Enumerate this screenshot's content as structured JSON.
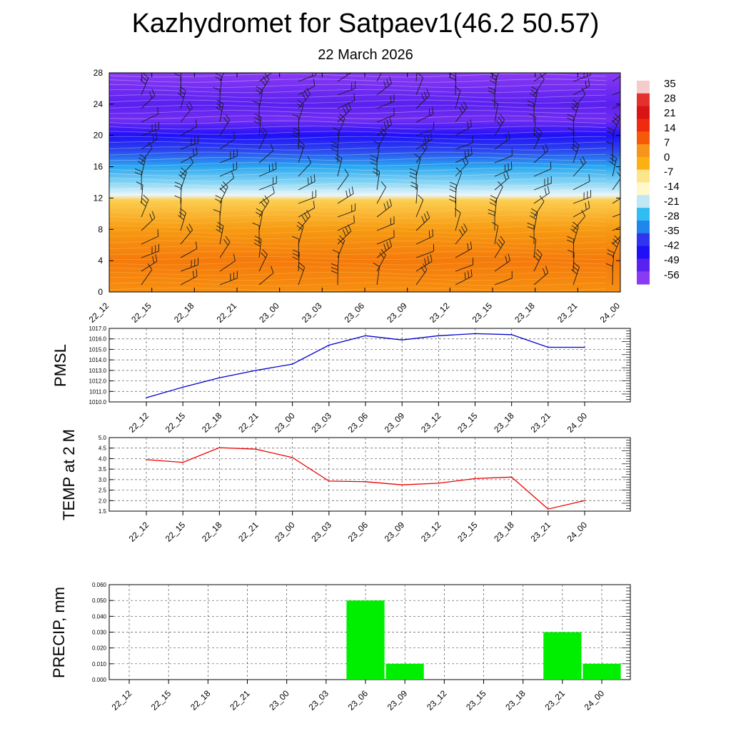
{
  "header": {
    "title": "Kazhydromet for Satpaev1(46.2 50.57)",
    "subtitle": "22 March 2026"
  },
  "chart_data": [
    {
      "type": "heatmap",
      "name": "temperature-cross-section",
      "title": "",
      "x_ticks": [
        "22_12",
        "22_15",
        "22_18",
        "22_21",
        "23_00",
        "23_03",
        "23_06",
        "23_09",
        "23_12",
        "23_15",
        "23_18",
        "23_21",
        "24_00"
      ],
      "y_ticks": [
        "0",
        "4",
        "8",
        "12",
        "16",
        "20",
        "24",
        "28"
      ],
      "ylim": [
        0,
        28
      ],
      "colorbar": {
        "labels": [
          "35",
          "28",
          "21",
          "14",
          "7",
          "0",
          "-7",
          "-14",
          "-21",
          "-28",
          "-35",
          "-42",
          "-49",
          "-56"
        ],
        "colors": [
          "#f4cccc",
          "#e53030",
          "#d81414",
          "#ef2a10",
          "#f45a08",
          "#f7941a",
          "#fbb014",
          "#fde58c",
          "#fff8c8",
          "#bfe7f4",
          "#32bdf2",
          "#1f86ee",
          "#2f34ee",
          "#2010f8",
          "#5a20f0",
          "#8a3af4"
        ]
      },
      "temperature_profile": [
        {
          "level": 0,
          "value": 8
        },
        {
          "level": 4,
          "value": 10
        },
        {
          "level": 8,
          "value": 7
        },
        {
          "level": 11.7,
          "value": 2
        },
        {
          "level": 12.4,
          "value": -14
        },
        {
          "level": 14,
          "value": -22
        },
        {
          "level": 16,
          "value": -32
        },
        {
          "level": 18,
          "value": -44
        },
        {
          "level": 20,
          "value": -52
        },
        {
          "level": 22,
          "value": -58
        },
        {
          "level": 24,
          "value": -56
        },
        {
          "level": 26,
          "value": -58
        },
        {
          "level": 28,
          "value": -60
        }
      ],
      "wind_barbs": "wind barbs at each time step and level"
    },
    {
      "type": "line",
      "name": "pmsl",
      "ylabel": "PMSL",
      "categories": [
        "22_12",
        "22_15",
        "22_18",
        "22_21",
        "23_00",
        "23_03",
        "23_06",
        "23_09",
        "23_12",
        "23_15",
        "23_18",
        "23_21",
        "24_00"
      ],
      "values": [
        1010.4,
        1011.4,
        1012.3,
        1013.0,
        1013.6,
        1015.4,
        1016.3,
        1015.9,
        1016.3,
        1016.5,
        1016.4,
        1015.2,
        1015.2
      ],
      "ylim": [
        1010.0,
        1017.0
      ],
      "y_ticks": [
        "1010.0",
        "1011.0",
        "1012.0",
        "1013.0",
        "1014.0",
        "1015.0",
        "1016.0",
        "1017.0"
      ],
      "color": "#0000cc"
    },
    {
      "type": "line",
      "name": "temp2m",
      "ylabel": "TEMP at 2 M",
      "categories": [
        "22_12",
        "22_15",
        "22_18",
        "22_21",
        "23_00",
        "23_03",
        "23_06",
        "23_09",
        "23_12",
        "23_15",
        "23_18",
        "23_21",
        "24_00"
      ],
      "values": [
        3.95,
        3.82,
        4.52,
        4.45,
        4.05,
        2.93,
        2.9,
        2.75,
        2.83,
        3.05,
        3.12,
        1.6,
        2.0
      ],
      "ylim": [
        1.5,
        5.0
      ],
      "y_ticks": [
        "1.5",
        "2.0",
        "2.5",
        "3.0",
        "3.5",
        "4.0",
        "4.5",
        "5.0"
      ],
      "color": "#ee0000"
    },
    {
      "type": "bar",
      "name": "precip",
      "ylabel": "PRECIP, mm",
      "categories": [
        "22_12",
        "22_15",
        "22_18",
        "22_21",
        "23_00",
        "23_03",
        "23_06",
        "23_09",
        "23_12",
        "23_15",
        "23_18",
        "23_21",
        "24_00"
      ],
      "values": [
        0,
        0,
        0,
        0,
        0,
        0,
        0.05,
        0.01,
        0,
        0,
        0,
        0.03,
        0.01
      ],
      "ylim": [
        0,
        0.06
      ],
      "y_ticks": [
        "0.000",
        "0.010",
        "0.020",
        "0.030",
        "0.040",
        "0.050",
        "0.060"
      ],
      "color": "#00ee00"
    }
  ]
}
